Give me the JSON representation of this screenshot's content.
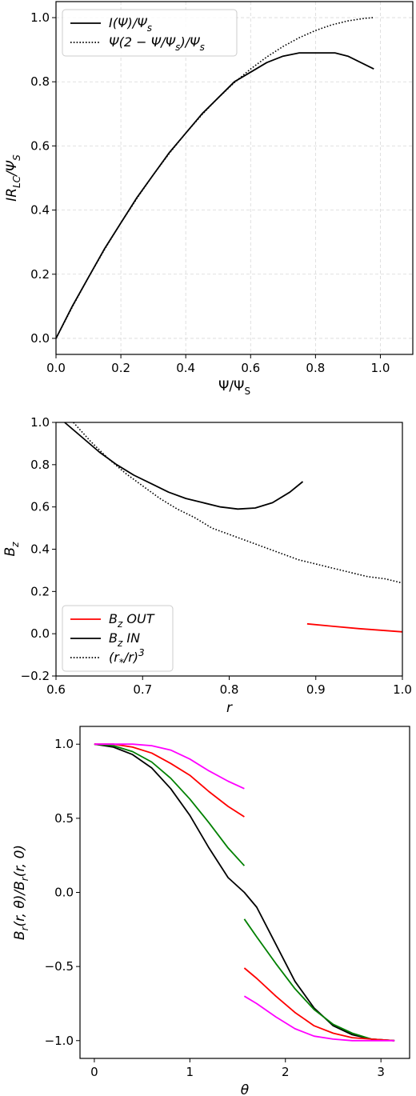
{
  "chart_data": [
    {
      "type": "line",
      "title": "",
      "xlabel": "Ψ/Ψ_S",
      "ylabel": "IR_LC/Ψ_S",
      "xlim": [
        0.0,
        1.1
      ],
      "ylim": [
        -0.05,
        1.05
      ],
      "xticks": [
        "0.0",
        "0.2",
        "0.4",
        "0.6",
        "0.8",
        "1.0"
      ],
      "yticks": [
        "0.0",
        "0.2",
        "0.4",
        "0.6",
        "0.8",
        "1.0"
      ],
      "grid": true,
      "legend_position": "top-left",
      "series": [
        {
          "name": "I(Ψ)/Ψ_s",
          "style": "solid",
          "color": "#000000",
          "x": [
            0.0,
            0.05,
            0.1,
            0.15,
            0.2,
            0.25,
            0.3,
            0.35,
            0.4,
            0.45,
            0.5,
            0.55,
            0.6,
            0.65,
            0.7,
            0.75,
            0.8,
            0.83,
            0.86,
            0.9,
            0.94,
            0.98
          ],
          "y": [
            0.0,
            0.1,
            0.19,
            0.28,
            0.36,
            0.44,
            0.51,
            0.58,
            0.64,
            0.7,
            0.75,
            0.8,
            0.83,
            0.86,
            0.88,
            0.89,
            0.89,
            0.89,
            0.89,
            0.88,
            0.86,
            0.84
          ]
        },
        {
          "name": "Ψ(2 − Ψ/Ψ_s)/Ψ_s",
          "style": "dotted",
          "color": "#000000",
          "x": [
            0.0,
            0.05,
            0.1,
            0.15,
            0.2,
            0.25,
            0.3,
            0.35,
            0.4,
            0.45,
            0.5,
            0.55,
            0.6,
            0.65,
            0.7,
            0.75,
            0.8,
            0.85,
            0.9,
            0.95,
            0.98
          ],
          "y": [
            0.0,
            0.0975,
            0.19,
            0.2775,
            0.36,
            0.4375,
            0.51,
            0.5775,
            0.64,
            0.6975,
            0.75,
            0.7975,
            0.84,
            0.8775,
            0.91,
            0.9375,
            0.96,
            0.9775,
            0.99,
            0.9975,
            1.0
          ]
        }
      ]
    },
    {
      "type": "line",
      "title": "",
      "xlabel": "r",
      "ylabel": "B_z",
      "xlim": [
        0.6,
        1.0
      ],
      "ylim": [
        -0.2,
        1.0
      ],
      "xticks": [
        "0.6",
        "0.7",
        "0.8",
        "0.9",
        "1.0"
      ],
      "yticks": [
        "−0.2",
        "0.0",
        "0.2",
        "0.4",
        "0.6",
        "0.8",
        "1.0"
      ],
      "grid": false,
      "legend_position": "bottom-left",
      "series": [
        {
          "name": "B_z  OUT",
          "style": "solid",
          "color": "#ff0000",
          "x": [
            0.89,
            0.92,
            0.95,
            0.98,
            1.0
          ],
          "y": [
            0.047,
            0.035,
            0.024,
            0.015,
            0.009
          ]
        },
        {
          "name": "B_z  IN",
          "style": "solid",
          "color": "#000000",
          "x": [
            0.61,
            0.63,
            0.65,
            0.67,
            0.69,
            0.71,
            0.73,
            0.75,
            0.77,
            0.79,
            0.81,
            0.83,
            0.85,
            0.87,
            0.885
          ],
          "y": [
            1.0,
            0.93,
            0.86,
            0.8,
            0.75,
            0.71,
            0.67,
            0.64,
            0.62,
            0.6,
            0.59,
            0.595,
            0.62,
            0.67,
            0.72
          ]
        },
        {
          "name": "(r_*/r)^3",
          "style": "dotted",
          "color": "#000000",
          "x": [
            0.62,
            0.64,
            0.66,
            0.68,
            0.7,
            0.72,
            0.74,
            0.76,
            0.78,
            0.8,
            0.82,
            0.84,
            0.86,
            0.88,
            0.9,
            0.92,
            0.94,
            0.96,
            0.98,
            1.0
          ],
          "y": [
            1.0,
            0.91,
            0.83,
            0.76,
            0.7,
            0.64,
            0.59,
            0.55,
            0.5,
            0.47,
            0.44,
            0.41,
            0.38,
            0.35,
            0.33,
            0.31,
            0.29,
            0.27,
            0.26,
            0.24
          ]
        }
      ]
    },
    {
      "type": "line",
      "title": "",
      "xlabel": "θ",
      "ylabel": "B_r(r, θ)/B_r(r, 0)",
      "xlim": [
        -0.15,
        3.3
      ],
      "ylim": [
        -1.12,
        1.12
      ],
      "xticks": [
        "0",
        "1",
        "2",
        "3"
      ],
      "yticks": [
        "−1.0",
        "−0.5",
        "0.0",
        "0.5",
        "1.0"
      ],
      "grid": false,
      "legend_position": "none",
      "series": [
        {
          "style": "solid",
          "color": "#000000",
          "x": [
            0.0,
            0.2,
            0.4,
            0.6,
            0.8,
            1.0,
            1.2,
            1.4,
            1.57,
            1.7,
            1.9,
            2.1,
            2.3,
            2.5,
            2.7,
            2.9,
            3.1416
          ],
          "y": [
            1.0,
            0.98,
            0.93,
            0.84,
            0.7,
            0.52,
            0.3,
            0.1,
            0.0,
            -0.1,
            -0.35,
            -0.6,
            -0.78,
            -0.9,
            -0.96,
            -0.99,
            -1.0
          ]
        },
        {
          "style": "solid",
          "color": "#008000",
          "x": [
            0.0,
            0.2,
            0.4,
            0.6,
            0.8,
            1.0,
            1.2,
            1.4,
            1.57,
            null,
            1.57,
            1.7,
            1.9,
            2.1,
            2.3,
            2.5,
            2.7,
            2.9,
            3.1416
          ],
          "y": [
            1.0,
            0.99,
            0.95,
            0.88,
            0.77,
            0.63,
            0.47,
            0.3,
            0.18,
            null,
            -0.18,
            -0.3,
            -0.48,
            -0.65,
            -0.79,
            -0.89,
            -0.95,
            -0.99,
            -1.0
          ]
        },
        {
          "style": "solid",
          "color": "#ff0000",
          "x": [
            0.0,
            0.2,
            0.4,
            0.6,
            0.8,
            1.0,
            1.2,
            1.4,
            1.57,
            null,
            1.57,
            1.7,
            1.9,
            2.1,
            2.3,
            2.5,
            2.7,
            2.9,
            3.1416
          ],
          "y": [
            1.0,
            1.0,
            0.98,
            0.94,
            0.87,
            0.79,
            0.68,
            0.58,
            0.51,
            null,
            -0.51,
            -0.58,
            -0.7,
            -0.81,
            -0.9,
            -0.95,
            -0.98,
            -0.99,
            -1.0
          ]
        },
        {
          "style": "solid",
          "color": "#ff00ff",
          "x": [
            0.0,
            0.2,
            0.4,
            0.6,
            0.8,
            1.0,
            1.2,
            1.4,
            1.57,
            null,
            1.57,
            1.7,
            1.9,
            2.1,
            2.3,
            2.5,
            2.7,
            2.9,
            3.1416
          ],
          "y": [
            1.0,
            1.0,
            1.0,
            0.99,
            0.96,
            0.9,
            0.82,
            0.75,
            0.7,
            null,
            -0.7,
            -0.75,
            -0.84,
            -0.92,
            -0.97,
            -0.99,
            -1.0,
            -1.0,
            -1.0
          ]
        }
      ]
    }
  ]
}
